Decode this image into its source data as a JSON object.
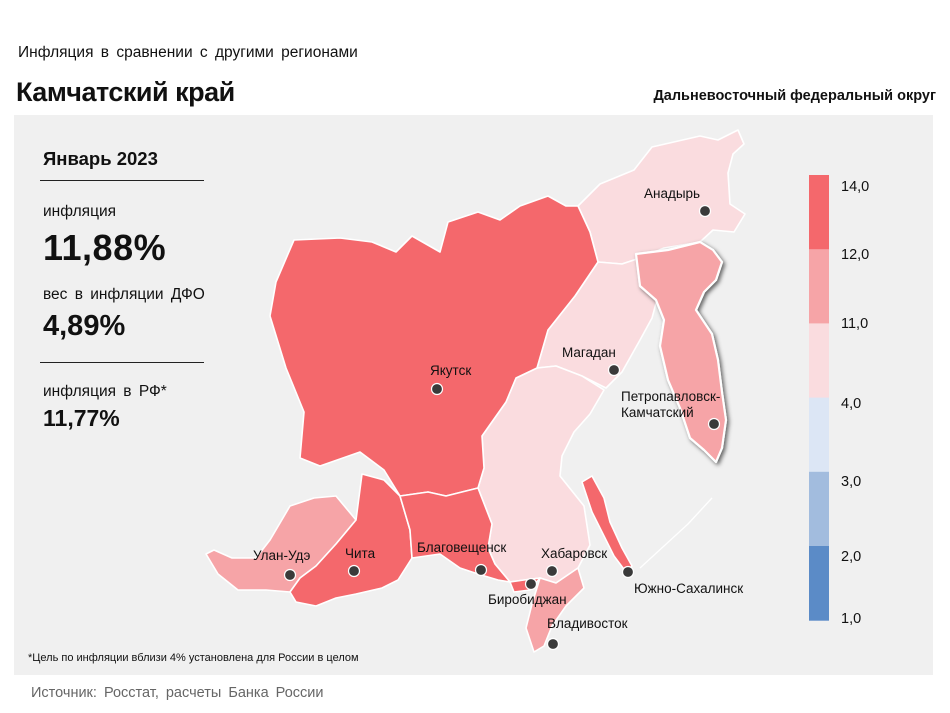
{
  "header": {
    "subtitle": "Инфляция  в сравнении  с другими  регионами",
    "region": "Камчатский край",
    "district": "Дальневосточный федеральный округ"
  },
  "stats": {
    "period": "Январь 2023",
    "inflation_label": "инфляция",
    "inflation_value": "11,88%",
    "weight_label": "вес в инфляции  ДФО",
    "weight_value": "4,89%",
    "rf_label": "инфляция  в РФ*",
    "rf_value": "11,77%"
  },
  "map": {
    "highlighted_region": "Камчатский край",
    "cities": [
      {
        "name": "Анадырь"
      },
      {
        "name": "Магадан"
      },
      {
        "name": "Якутск"
      },
      {
        "name": "Петропавловск-\nКамчатский"
      },
      {
        "name": "Улан-Удэ"
      },
      {
        "name": "Чита"
      },
      {
        "name": "Благовещенск"
      },
      {
        "name": "Хабаровск"
      },
      {
        "name": "Биробиджан"
      },
      {
        "name": "Южно-Сахалинск"
      },
      {
        "name": "Владивосток"
      }
    ],
    "legend": {
      "ticks": [
        "14,0",
        "12,0",
        "11,0",
        "4,0",
        "3,0",
        "2,0",
        "1,0"
      ],
      "colors": [
        "#f4686c",
        "#f6a4a7",
        "#fadcdf",
        "#dce6f5",
        "#a2bcde",
        "#5b8bc7"
      ]
    },
    "colors": {
      "high": "#f4686c",
      "mid": "#f6a4a7",
      "low": "#fadcdf",
      "outline": "#ffffff"
    }
  },
  "footnote": "*Цель по инфляции вблизи 4% установлена для России в целом",
  "source": "Источник: Росстат, расчеты  Банка  России"
}
